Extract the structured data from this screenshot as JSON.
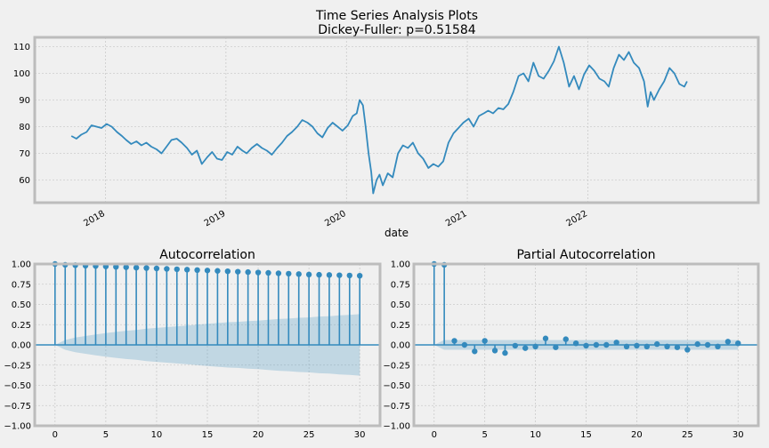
{
  "figure": {
    "title_line1": "Time Series Analysis Plots",
    "title_line2": "Dickey-Fuller: p=0.51584"
  },
  "colors": {
    "background": "#f0f0f0",
    "axes_face": "#f0f0f0",
    "spine": "#bcbcbc",
    "grid": "#cbcbcb",
    "series": "#348abd",
    "confint": "#348abd"
  },
  "chart_data": [
    {
      "type": "line",
      "title": "",
      "xlabel": "date",
      "ylabel": "",
      "x_range": [
        "2017-06-01",
        "2023-06-01"
      ],
      "ylim": [
        51.5,
        113.5
      ],
      "xticks": [
        "2018",
        "2019",
        "2020",
        "2021",
        "2022"
      ],
      "yticks": [
        60,
        70,
        80,
        90,
        100,
        110
      ],
      "grid": true,
      "series": [
        {
          "points": [
            [
              "2017-09-20",
              76.5
            ],
            [
              "2017-10-05",
              75.5
            ],
            [
              "2017-10-20",
              77.0
            ],
            [
              "2017-11-05",
              78.0
            ],
            [
              "2017-11-20",
              80.5
            ],
            [
              "2017-12-05",
              80.0
            ],
            [
              "2017-12-20",
              79.5
            ],
            [
              "2018-01-05",
              81.0
            ],
            [
              "2018-01-20",
              80.0
            ],
            [
              "2018-02-05",
              78.0
            ],
            [
              "2018-02-20",
              76.5
            ],
            [
              "2018-03-05",
              75.0
            ],
            [
              "2018-03-20",
              73.5
            ],
            [
              "2018-04-05",
              74.5
            ],
            [
              "2018-04-20",
              73.0
            ],
            [
              "2018-05-05",
              74.0
            ],
            [
              "2018-05-20",
              72.5
            ],
            [
              "2018-06-05",
              71.5
            ],
            [
              "2018-06-20",
              70.0
            ],
            [
              "2018-07-05",
              72.5
            ],
            [
              "2018-07-20",
              75.0
            ],
            [
              "2018-08-05",
              75.5
            ],
            [
              "2018-08-20",
              74.0
            ],
            [
              "2018-09-05",
              72.0
            ],
            [
              "2018-09-20",
              69.5
            ],
            [
              "2018-10-05",
              71.0
            ],
            [
              "2018-10-20",
              66.0
            ],
            [
              "2018-11-05",
              68.5
            ],
            [
              "2018-11-20",
              70.5
            ],
            [
              "2018-12-05",
              68.0
            ],
            [
              "2018-12-20",
              67.5
            ],
            [
              "2019-01-05",
              70.5
            ],
            [
              "2019-01-20",
              69.5
            ],
            [
              "2019-02-05",
              72.5
            ],
            [
              "2019-02-20",
              71.0
            ],
            [
              "2019-03-05",
              70.0
            ],
            [
              "2019-03-20",
              72.0
            ],
            [
              "2019-04-05",
              73.5
            ],
            [
              "2019-04-20",
              72.0
            ],
            [
              "2019-05-05",
              71.0
            ],
            [
              "2019-05-20",
              69.5
            ],
            [
              "2019-06-05",
              72.0
            ],
            [
              "2019-06-20",
              74.0
            ],
            [
              "2019-07-05",
              76.5
            ],
            [
              "2019-07-20",
              78.0
            ],
            [
              "2019-08-05",
              80.0
            ],
            [
              "2019-08-20",
              82.5
            ],
            [
              "2019-09-05",
              81.5
            ],
            [
              "2019-09-20",
              80.0
            ],
            [
              "2019-10-05",
              77.5
            ],
            [
              "2019-10-20",
              76.0
            ],
            [
              "2019-11-05",
              79.5
            ],
            [
              "2019-11-20",
              81.5
            ],
            [
              "2019-12-05",
              80.0
            ],
            [
              "2019-12-20",
              78.5
            ],
            [
              "2020-01-05",
              80.5
            ],
            [
              "2020-01-20",
              84.0
            ],
            [
              "2020-02-01",
              85.0
            ],
            [
              "2020-02-10",
              90.0
            ],
            [
              "2020-02-20",
              88.0
            ],
            [
              "2020-02-28",
              80.0
            ],
            [
              "2020-03-08",
              70.0
            ],
            [
              "2020-03-16",
              63.0
            ],
            [
              "2020-03-22",
              55.0
            ],
            [
              "2020-04-01",
              60.0
            ],
            [
              "2020-04-10",
              62.0
            ],
            [
              "2020-04-20",
              58.0
            ],
            [
              "2020-05-05",
              62.5
            ],
            [
              "2020-05-20",
              61.0
            ],
            [
              "2020-06-05",
              70.0
            ],
            [
              "2020-06-20",
              73.0
            ],
            [
              "2020-07-05",
              72.0
            ],
            [
              "2020-07-20",
              74.0
            ],
            [
              "2020-08-05",
              70.0
            ],
            [
              "2020-08-20",
              68.0
            ],
            [
              "2020-09-05",
              64.5
            ],
            [
              "2020-09-20",
              66.0
            ],
            [
              "2020-10-05",
              65.0
            ],
            [
              "2020-10-20",
              67.0
            ],
            [
              "2020-11-05",
              74.0
            ],
            [
              "2020-11-20",
              77.5
            ],
            [
              "2020-12-05",
              79.5
            ],
            [
              "2020-12-20",
              81.5
            ],
            [
              "2021-01-05",
              83.0
            ],
            [
              "2021-01-20",
              80.0
            ],
            [
              "2021-02-05",
              84.0
            ],
            [
              "2021-02-20",
              85.0
            ],
            [
              "2021-03-05",
              86.0
            ],
            [
              "2021-03-20",
              85.0
            ],
            [
              "2021-04-05",
              87.0
            ],
            [
              "2021-04-20",
              86.5
            ],
            [
              "2021-05-05",
              88.5
            ],
            [
              "2021-05-20",
              93.0
            ],
            [
              "2021-06-05",
              99.0
            ],
            [
              "2021-06-20",
              100.0
            ],
            [
              "2021-07-05",
              97.0
            ],
            [
              "2021-07-20",
              104.0
            ],
            [
              "2021-08-05",
              99.0
            ],
            [
              "2021-08-20",
              98.0
            ],
            [
              "2021-09-05",
              101.0
            ],
            [
              "2021-09-20",
              104.5
            ],
            [
              "2021-10-05",
              110.0
            ],
            [
              "2021-10-20",
              104.0
            ],
            [
              "2021-11-05",
              95.0
            ],
            [
              "2021-11-20",
              99.0
            ],
            [
              "2021-12-05",
              94.0
            ],
            [
              "2021-12-20",
              99.5
            ],
            [
              "2022-01-05",
              103.0
            ],
            [
              "2022-01-20",
              101.0
            ],
            [
              "2022-02-05",
              98.0
            ],
            [
              "2022-02-20",
              97.0
            ],
            [
              "2022-03-05",
              95.0
            ],
            [
              "2022-03-20",
              102.0
            ],
            [
              "2022-04-05",
              107.0
            ],
            [
              "2022-04-20",
              105.0
            ],
            [
              "2022-05-05",
              108.0
            ],
            [
              "2022-05-20",
              104.0
            ],
            [
              "2022-06-05",
              102.0
            ],
            [
              "2022-06-20",
              97.0
            ],
            [
              "2022-07-01",
              87.5
            ],
            [
              "2022-07-10",
              93.0
            ],
            [
              "2022-07-20",
              90.0
            ],
            [
              "2022-08-05",
              94.0
            ],
            [
              "2022-08-20",
              97.0
            ],
            [
              "2022-09-05",
              102.0
            ],
            [
              "2022-09-20",
              100.0
            ],
            [
              "2022-10-05",
              96.0
            ],
            [
              "2022-10-20",
              95.0
            ],
            [
              "2022-10-28",
              97.0
            ]
          ]
        }
      ]
    },
    {
      "type": "stem",
      "title": "Autocorrelation",
      "xlabel": "",
      "ylabel": "",
      "xlim": [
        -2,
        32
      ],
      "ylim": [
        -1.0,
        1.0
      ],
      "xticks": [
        0,
        5,
        10,
        15,
        20,
        25,
        30
      ],
      "yticks": [
        -1.0,
        -0.75,
        -0.5,
        -0.25,
        0.0,
        0.25,
        0.5,
        0.75,
        1.0
      ],
      "ytick_labels": [
        "−1.00",
        "−0.75",
        "−0.50",
        "−0.25",
        "0.00",
        "0.25",
        "0.50",
        "0.75",
        "1.00"
      ],
      "grid": true,
      "lags": [
        0,
        1,
        2,
        3,
        4,
        5,
        6,
        7,
        8,
        9,
        10,
        11,
        12,
        13,
        14,
        15,
        16,
        17,
        18,
        19,
        20,
        21,
        22,
        23,
        24,
        25,
        26,
        27,
        28,
        29,
        30
      ],
      "values": [
        1.0,
        0.99,
        0.985,
        0.98,
        0.975,
        0.97,
        0.965,
        0.96,
        0.955,
        0.95,
        0.945,
        0.94,
        0.935,
        0.93,
        0.925,
        0.92,
        0.915,
        0.91,
        0.905,
        0.9,
        0.895,
        0.89,
        0.885,
        0.88,
        0.875,
        0.87,
        0.867,
        0.864,
        0.861,
        0.858,
        0.855
      ],
      "confint_upper": [
        0.0,
        0.06,
        0.09,
        0.11,
        0.13,
        0.145,
        0.16,
        0.175,
        0.185,
        0.2,
        0.21,
        0.22,
        0.23,
        0.24,
        0.25,
        0.26,
        0.27,
        0.28,
        0.285,
        0.295,
        0.3,
        0.31,
        0.32,
        0.325,
        0.335,
        0.34,
        0.35,
        0.355,
        0.365,
        0.37,
        0.38
      ]
    },
    {
      "type": "stem",
      "title": "Partial Autocorrelation",
      "xlabel": "",
      "ylabel": "",
      "xlim": [
        -2,
        32
      ],
      "ylim": [
        -1.0,
        1.0
      ],
      "xticks": [
        0,
        5,
        10,
        15,
        20,
        25,
        30
      ],
      "yticks": [
        -1.0,
        -0.75,
        -0.5,
        -0.25,
        0.0,
        0.25,
        0.5,
        0.75,
        1.0
      ],
      "ytick_labels": [
        "−1.00",
        "−0.75",
        "−0.50",
        "−0.25",
        "0.00",
        "0.25",
        "0.50",
        "0.75",
        "1.00"
      ],
      "grid": true,
      "lags": [
        0,
        1,
        2,
        3,
        4,
        5,
        6,
        7,
        8,
        9,
        10,
        11,
        12,
        13,
        14,
        15,
        16,
        17,
        18,
        19,
        20,
        21,
        22,
        23,
        24,
        25,
        26,
        27,
        28,
        29,
        30
      ],
      "values": [
        1.0,
        0.99,
        0.05,
        0.0,
        -0.08,
        0.05,
        -0.07,
        -0.1,
        -0.01,
        -0.04,
        -0.02,
        0.08,
        -0.03,
        0.07,
        0.02,
        -0.01,
        0.0,
        0.0,
        0.03,
        -0.02,
        -0.01,
        -0.02,
        0.01,
        -0.02,
        -0.03,
        -0.06,
        0.01,
        0.0,
        -0.02,
        0.04,
        0.02
      ],
      "confint_upper": [
        0.0,
        0.06,
        0.06,
        0.06,
        0.06,
        0.06,
        0.06,
        0.06,
        0.06,
        0.06,
        0.06,
        0.06,
        0.06,
        0.06,
        0.06,
        0.06,
        0.06,
        0.06,
        0.06,
        0.06,
        0.06,
        0.06,
        0.06,
        0.06,
        0.06,
        0.06,
        0.06,
        0.06,
        0.06,
        0.06,
        0.06
      ]
    }
  ]
}
